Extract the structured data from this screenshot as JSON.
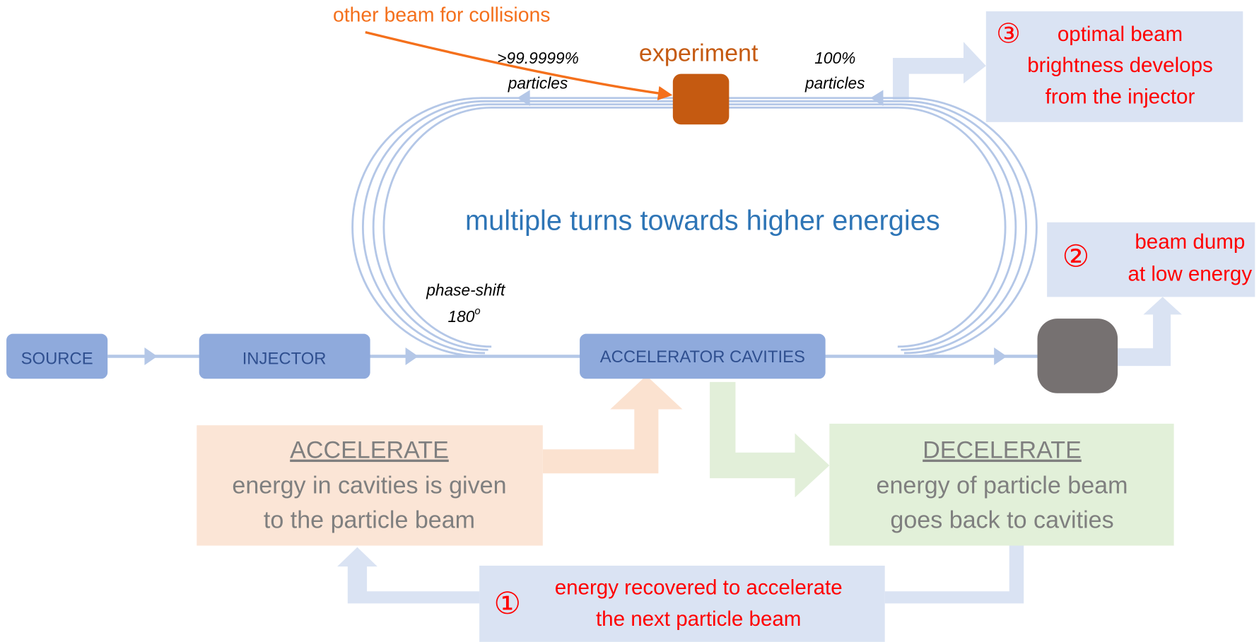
{
  "labels": {
    "other_beam": "other beam for collisions",
    "experiment": "experiment",
    "left_particles": [
      ">99.9999%",
      "particles"
    ],
    "right_particles": [
      "100%",
      "particles"
    ],
    "center": "multiple turns towards higher energies",
    "phase_shift": "phase-shift",
    "phase_value": "180",
    "phase_sup": "o"
  },
  "nodes": [
    {
      "label": "SOURCE"
    },
    {
      "label": "INJECTOR"
    },
    {
      "label": "ACCELERATOR CAVITIES"
    }
  ],
  "notes": {
    "three": {
      "marker": "③",
      "lines": [
        "optimal beam",
        "brightness develops",
        "from the injector"
      ]
    },
    "two": {
      "marker": "②",
      "lines": [
        "beam dump",
        "at low energy"
      ]
    },
    "one": {
      "marker": "①",
      "lines": [
        "energy recovered to accelerate",
        "the next particle beam"
      ]
    }
  },
  "accelerate": {
    "title": "ACCELERATE",
    "lines": [
      "energy in cavities is given",
      "to the particle beam"
    ]
  },
  "decelerate": {
    "title": "DECELERATE",
    "lines": [
      "energy of particle beam",
      "goes back to cavities"
    ]
  }
}
